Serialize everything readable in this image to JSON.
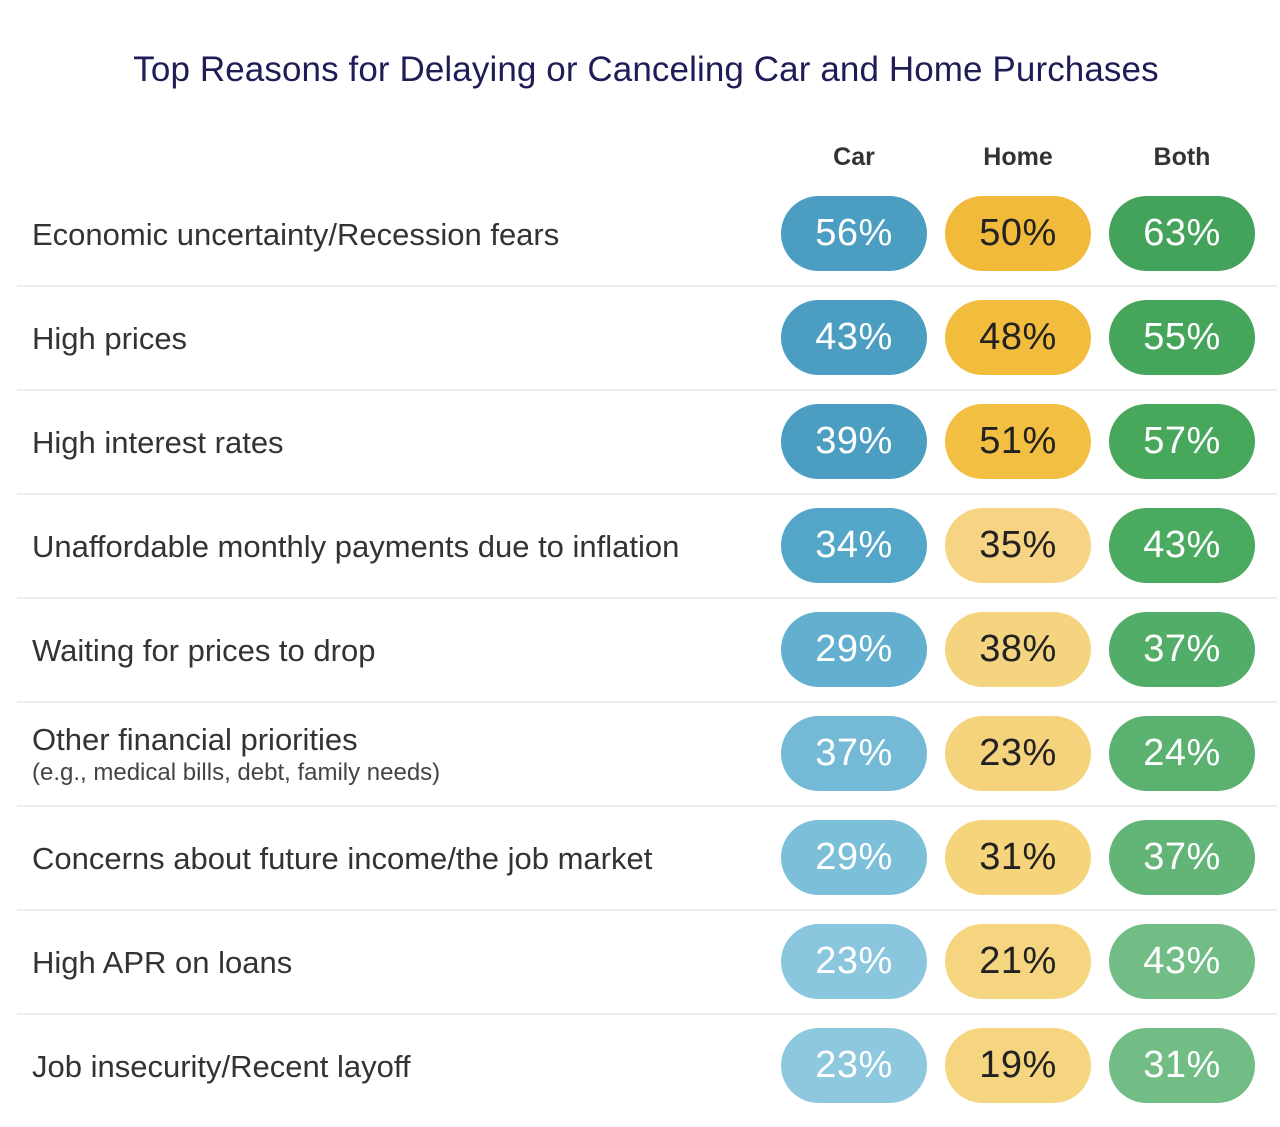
{
  "chart_data": {
    "type": "table",
    "title": "Top Reasons for Delaying or Canceling Car and Home Purchases",
    "columns": [
      "Car",
      "Home",
      "Both"
    ],
    "rows": [
      {
        "label": "Economic uncertainty/Recession fears",
        "sublabel": "",
        "values": [
          "56%",
          "50%",
          "63%"
        ]
      },
      {
        "label": "High prices",
        "sublabel": "",
        "values": [
          "43%",
          "48%",
          "55%"
        ]
      },
      {
        "label": "High interest rates",
        "sublabel": "",
        "values": [
          "39%",
          "51%",
          "57%"
        ]
      },
      {
        "label": "Unaffordable monthly payments due to inflation",
        "sublabel": "",
        "values": [
          "34%",
          "35%",
          "43%"
        ]
      },
      {
        "label": "Waiting for prices to drop",
        "sublabel": "",
        "values": [
          "29%",
          "38%",
          "37%"
        ]
      },
      {
        "label": "Other financial priorities",
        "sublabel": "(e.g., medical bills, debt, family needs)",
        "values": [
          "37%",
          "23%",
          "24%"
        ]
      },
      {
        "label": "Concerns about future income/the job market",
        "sublabel": "",
        "values": [
          "29%",
          "31%",
          "37%"
        ]
      },
      {
        "label": "High APR on loans",
        "sublabel": "",
        "values": [
          "23%",
          "21%",
          "43%"
        ]
      },
      {
        "label": "Job insecurity/Recent layoff",
        "sublabel": "",
        "values": [
          "23%",
          "19%",
          "31%"
        ]
      }
    ],
    "column_colors": {
      "car": [
        "#4b9ec1",
        "#4b9ec1",
        "#4b9ec1",
        "#54a6c8",
        "#62afcf",
        "#74bad6",
        "#7cbfd9",
        "#8ac7de",
        "#8dc8df"
      ],
      "home": [
        "#f2ba3a",
        "#f2bc3c",
        "#f3bf42",
        "#f6d484",
        "#f5d47f",
        "#f5d27c",
        "#f5d47c",
        "#f5d57f",
        "#f5d57f"
      ],
      "both": [
        "#43a35a",
        "#45a55b",
        "#47a85c",
        "#4aaa5f",
        "#52ad68",
        "#5ab170",
        "#62b577",
        "#72bd85",
        "#72bd85"
      ]
    }
  }
}
